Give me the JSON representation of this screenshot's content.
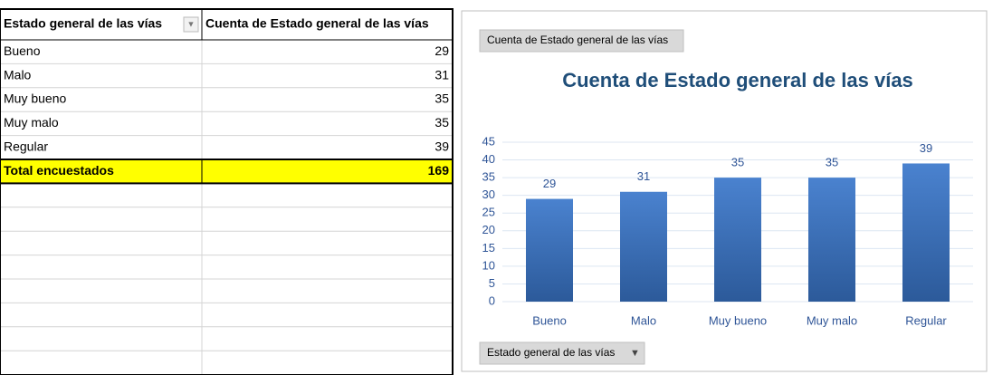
{
  "table": {
    "header": [
      "Estado general de las vías",
      "Cuenta de Estado general de las vías"
    ],
    "rows": [
      [
        "Bueno",
        29
      ],
      [
        "Malo",
        31
      ],
      [
        "Muy bueno",
        35
      ],
      [
        "Muy malo",
        35
      ],
      [
        "Regular",
        39
      ]
    ],
    "total": [
      "Total encuestados",
      169
    ]
  },
  "chart_data": {
    "type": "bar",
    "title": "Cuenta de Estado general de las vías",
    "value_button": "Cuenta de Estado general de las vías",
    "axis_button": "Estado general de las vías",
    "categories": [
      "Bueno",
      "Malo",
      "Muy bueno",
      "Muy malo",
      "Regular"
    ],
    "values": [
      29,
      31,
      35,
      35,
      39
    ],
    "color": "#3a6fb8",
    "ylim": [
      0,
      45
    ],
    "yticks": [
      0,
      5,
      10,
      15,
      20,
      25,
      30,
      35,
      40,
      45
    ],
    "grid": true
  }
}
